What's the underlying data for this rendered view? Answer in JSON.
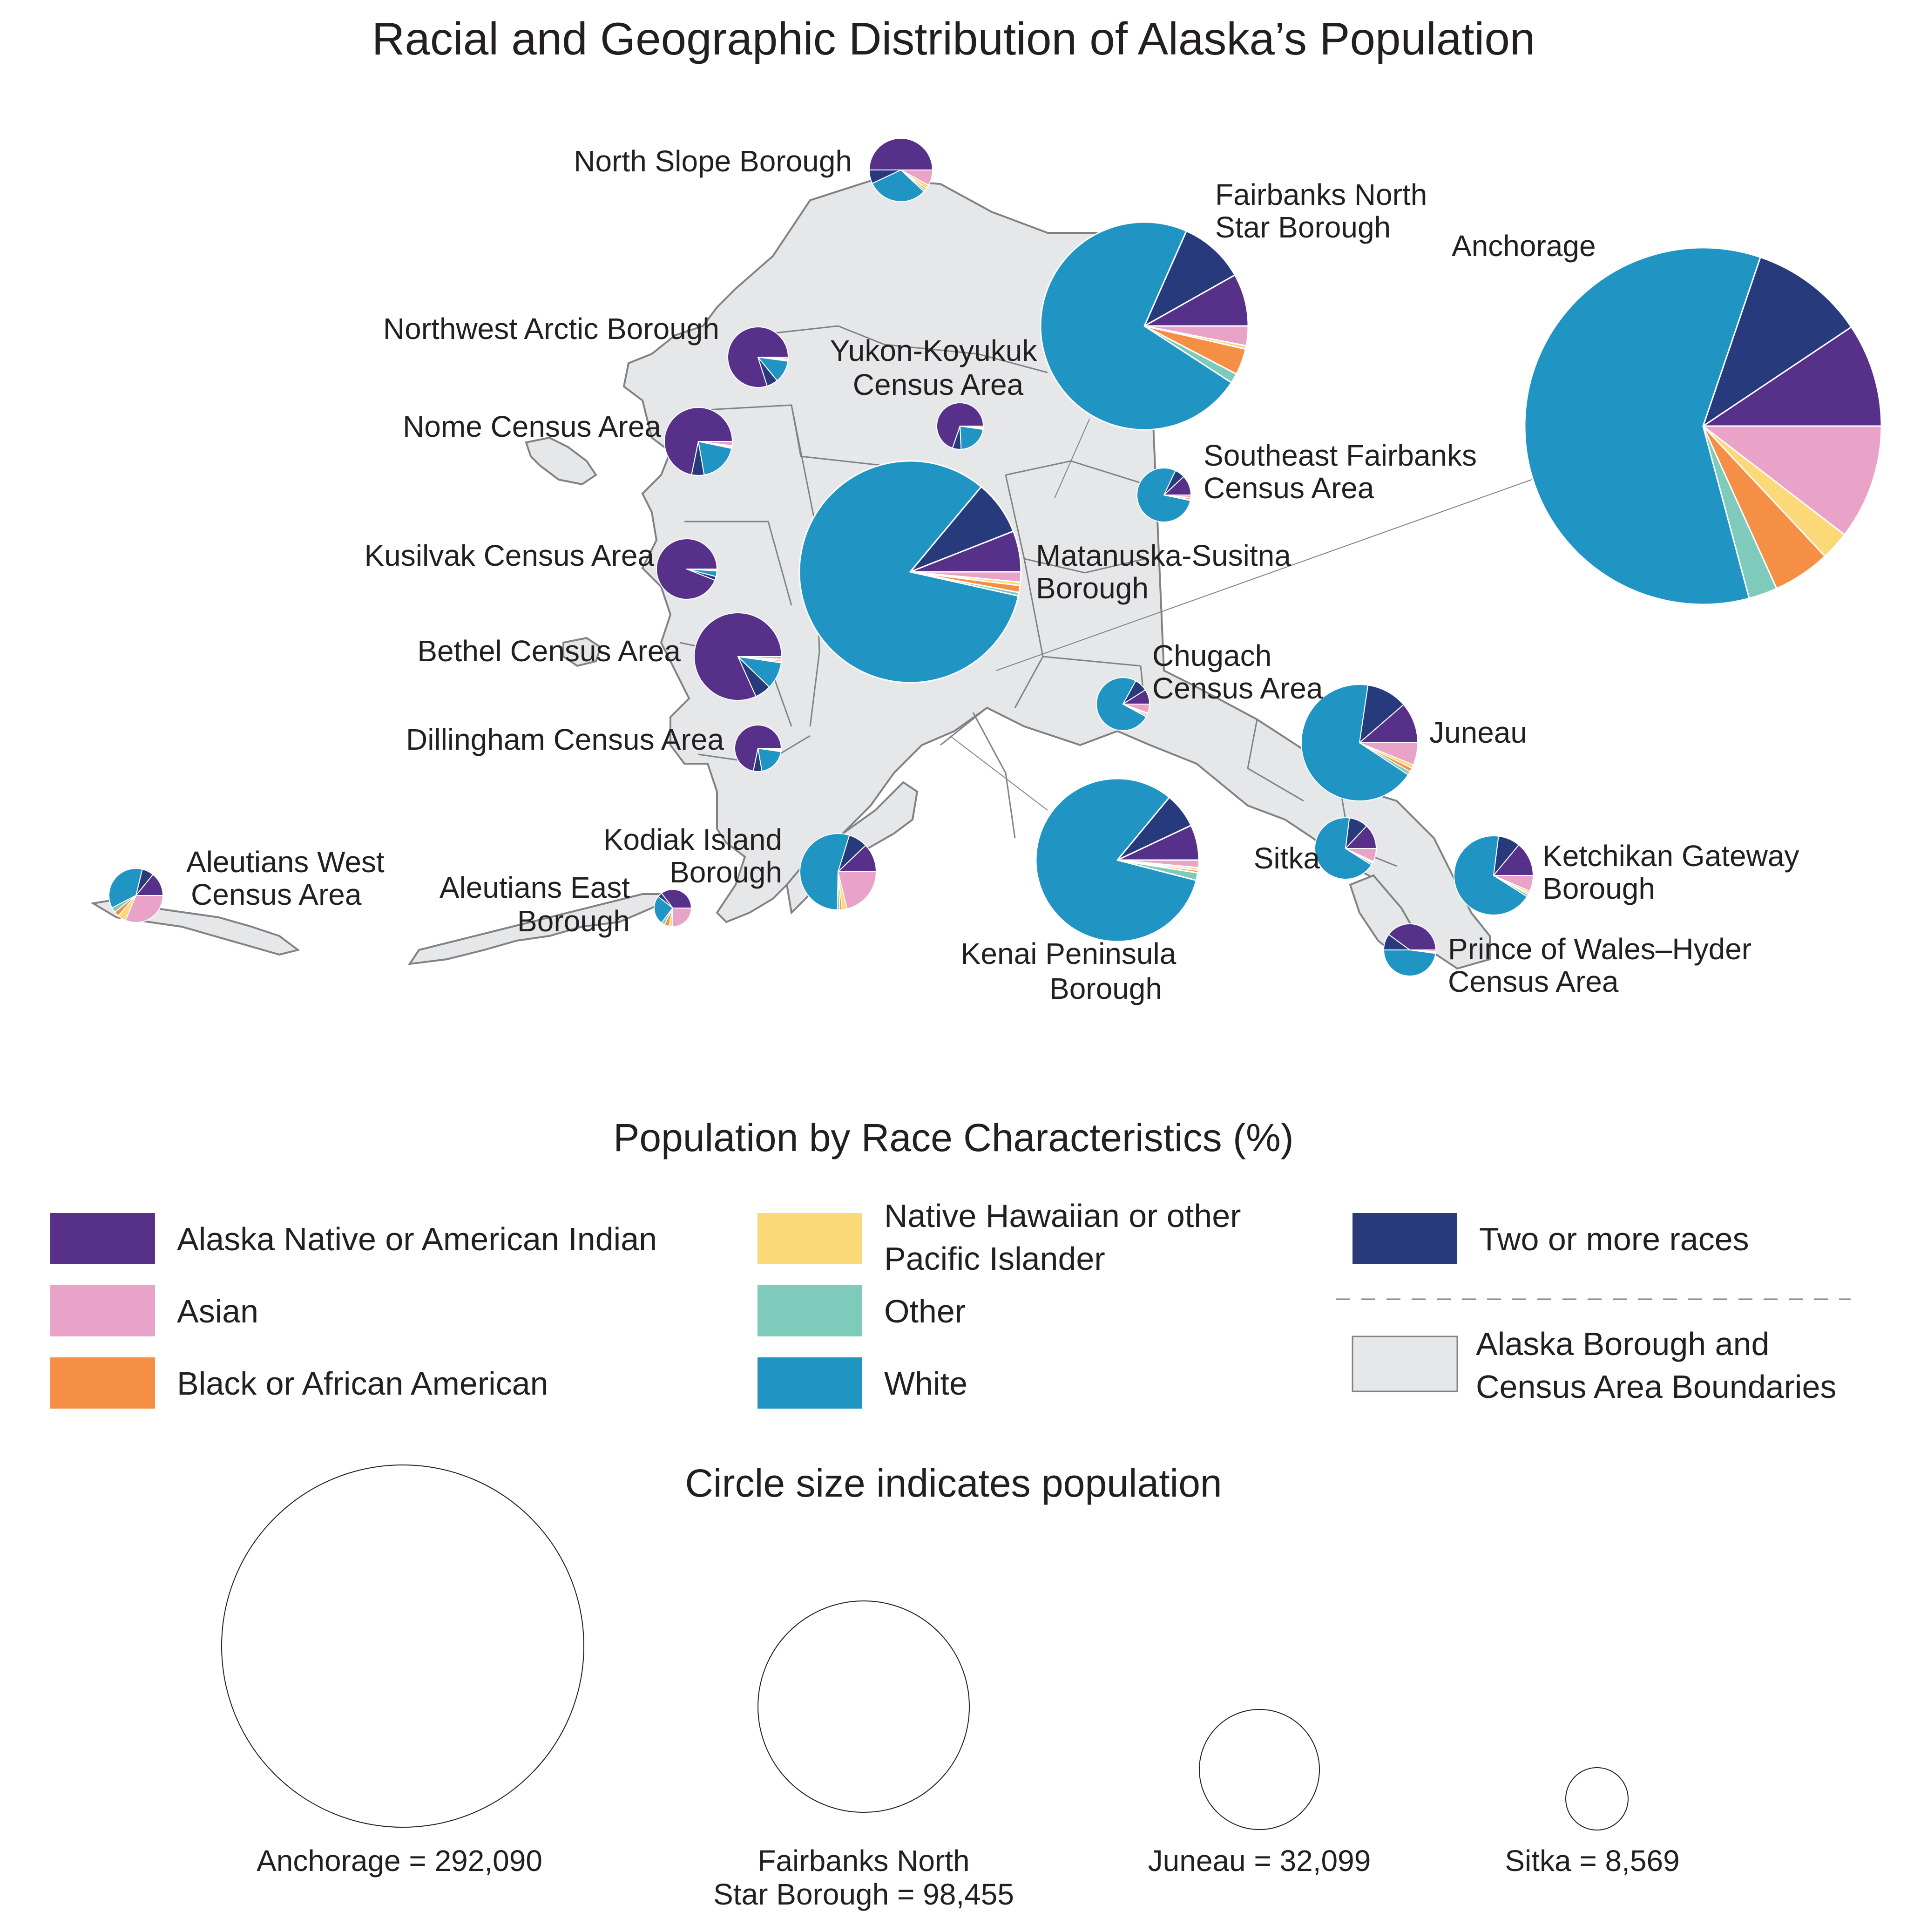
{
  "title": "Racial and Geographic Distribution of Alaska’s Population",
  "legend": {
    "title": "Population by Race Characteristics (%)",
    "categories": [
      {
        "key": "native",
        "label": "Alaska Native or American Indian",
        "color": "#57308a"
      },
      {
        "key": "asian",
        "label": "Asian",
        "color": "#e9a3c9"
      },
      {
        "key": "black",
        "label": "Black or African American",
        "color": "#f58f45"
      },
      {
        "key": "nhpi",
        "label": "Native Hawaiian or other Pacific Islander",
        "color": "#fbd978"
      },
      {
        "key": "other",
        "label": "Other",
        "color": "#7fcbbb"
      },
      {
        "key": "white",
        "label": "White",
        "color": "#2095c4"
      },
      {
        "key": "two",
        "label": "Two or more races",
        "color": "#273a7c"
      }
    ],
    "boundary_label": "Alaska Borough and Census Area Boundaries",
    "boundary_fill": "#e6e7e8",
    "boundary_stroke": "#808285"
  },
  "size_legend": {
    "title": "Circle size indicates population",
    "items": [
      {
        "label": "Anchorage = 292,090",
        "population": 292090
      },
      {
        "label": "Fairbanks North Star Borough = 98,455",
        "population": 98455
      },
      {
        "label": "Juneau = 32,099",
        "population": 32099
      },
      {
        "label": "Sitka = 8,569",
        "population": 8569
      }
    ]
  },
  "chart_data": {
    "type": "pie",
    "series_order": [
      "Alaska Native or American Indian",
      "Two or more races",
      "White",
      "Other",
      "Black or African American",
      "Native Hawaiian or other Pacific Islander",
      "Asian"
    ],
    "regions": [
      {
        "name": "North Slope Borough",
        "values": [
          50,
          7,
          31,
          1,
          1,
          2,
          8
        ]
      },
      {
        "name": "Northwest Arctic Borough",
        "values": [
          80,
          6,
          12,
          0.5,
          0.3,
          0.3,
          1
        ]
      },
      {
        "name": "Nome Census Area",
        "values": [
          72,
          6,
          19,
          0.5,
          0.5,
          0.3,
          2
        ]
      },
      {
        "name": "Yukon-Koyukuk Census Area",
        "values": [
          70,
          6,
          22,
          0.5,
          0.5,
          0.3,
          1
        ]
      },
      {
        "name": "Fairbanks North Star Borough",
        "values": [
          8,
          10,
          71,
          1.5,
          4,
          0.5,
          3
        ]
      },
      {
        "name": "Anchorage",
        "values": [
          9,
          10,
          57,
          2.5,
          5,
          2.5,
          10
        ]
      },
      {
        "name": "Southeast Fairbanks Census Area",
        "values": [
          12,
          6,
          79,
          0.5,
          1,
          0.3,
          1.5
        ]
      },
      {
        "name": "Kusilvak Census Area",
        "values": [
          94,
          2,
          3,
          0.3,
          0.2,
          0.2,
          0.3
        ]
      },
      {
        "name": "Matanuska-Susitna Borough",
        "values": [
          6,
          8,
          83,
          0.5,
          1,
          0.5,
          1.5
        ]
      },
      {
        "name": "Bethel Census Area",
        "values": [
          82,
          6,
          10,
          0.5,
          0.5,
          0.3,
          1
        ]
      },
      {
        "name": "Chugach Census Area",
        "values": [
          9,
          8,
          75,
          1,
          1,
          0.5,
          5.5
        ]
      },
      {
        "name": "Juneau",
        "values": [
          11,
          11,
          66,
          1,
          1,
          1,
          6
        ]
      },
      {
        "name": "Dillingham Census Area",
        "values": [
          72,
          6,
          20,
          0.5,
          0.5,
          0.3,
          1
        ]
      },
      {
        "name": "Kodiak Island Borough",
        "values": [
          12,
          8,
          54,
          1,
          1,
          2,
          21
        ]
      },
      {
        "name": "Aleutians West Census Area",
        "values": [
          14,
          7,
          36,
          3,
          3,
          5,
          31
        ]
      },
      {
        "name": "Aleutians East Borough",
        "values": [
          35,
          4,
          25,
          3,
          4,
          3,
          25
        ]
      },
      {
        "name": "Kenai Peninsula Borough",
        "values": [
          7,
          7,
          82,
          1.5,
          0.5,
          0.5,
          1.5
        ]
      },
      {
        "name": "Sitka",
        "values": [
          13,
          10,
          68,
          1,
          0.5,
          0.5,
          7
        ]
      },
      {
        "name": "Ketchikan Gateway Borough",
        "values": [
          14,
          9,
          68,
          1,
          0.5,
          1,
          6.5
        ]
      },
      {
        "name": "Prince of Wales–Hyder Census Area",
        "values": [
          40,
          10,
          48,
          0.5,
          0.3,
          0.3,
          1
        ]
      }
    ]
  }
}
